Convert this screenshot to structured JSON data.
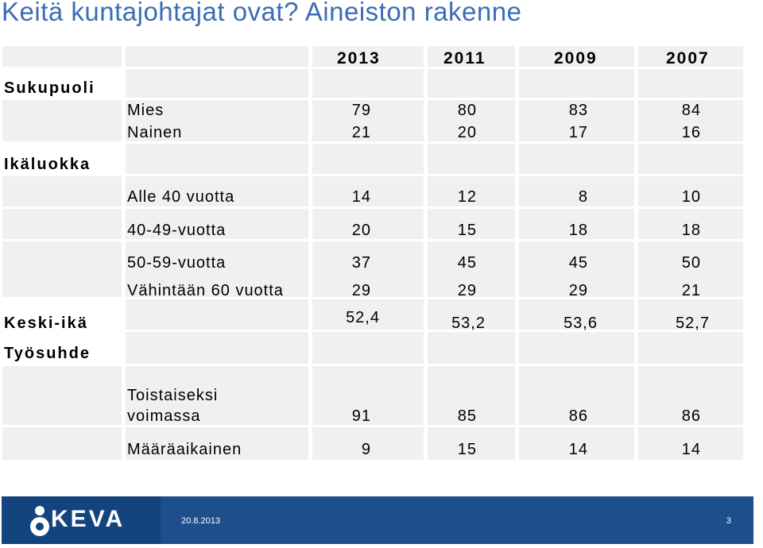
{
  "title": "Keitä kuntajohtajat ovat? Aineiston rakenne",
  "columns": [
    "2013",
    "2011",
    "2009",
    "2007"
  ],
  "categories": {
    "gender": "Sukupuoli",
    "age_group": "Ikäluokka",
    "mean_age": "Keski-ikä",
    "employment": "Työsuhde"
  },
  "rows": {
    "mies": {
      "label": "Mies",
      "values": [
        "79",
        "80",
        "83",
        "84"
      ]
    },
    "nainen": {
      "label": "Nainen",
      "values": [
        "21",
        "20",
        "17",
        "16"
      ]
    },
    "alle40": {
      "label": "Alle 40 vuotta",
      "values": [
        "14",
        "12",
        "8",
        "10"
      ]
    },
    "a40_49": {
      "label": "40-49-vuotta",
      "values": [
        "20",
        "15",
        "18",
        "18"
      ]
    },
    "a50_59": {
      "label": "50-59-vuotta",
      "values": [
        "37",
        "45",
        "45",
        "50"
      ]
    },
    "yli60": {
      "label": "Vähintään 60 vuotta",
      "values": [
        "29",
        "29",
        "29",
        "21"
      ]
    },
    "keski_ika": {
      "values": [
        "52,4",
        "53,2",
        "53,6",
        "52,7"
      ]
    },
    "toistaiseksi": {
      "label_line1": "Toistaiseksi",
      "label_line2": "voimassa",
      "values": [
        "91",
        "85",
        "86",
        "86"
      ]
    },
    "maaraaikainen": {
      "label": "Määräaikainen",
      "values": [
        "9",
        "15",
        "14",
        "14"
      ]
    }
  },
  "footer": {
    "logo": "KEVA",
    "date": "20.8.2013",
    "page": "3"
  },
  "colors": {
    "title": "#3b6db5",
    "cell_bg": "#f0f0f0",
    "footer_bg": "#1d4f8c"
  }
}
